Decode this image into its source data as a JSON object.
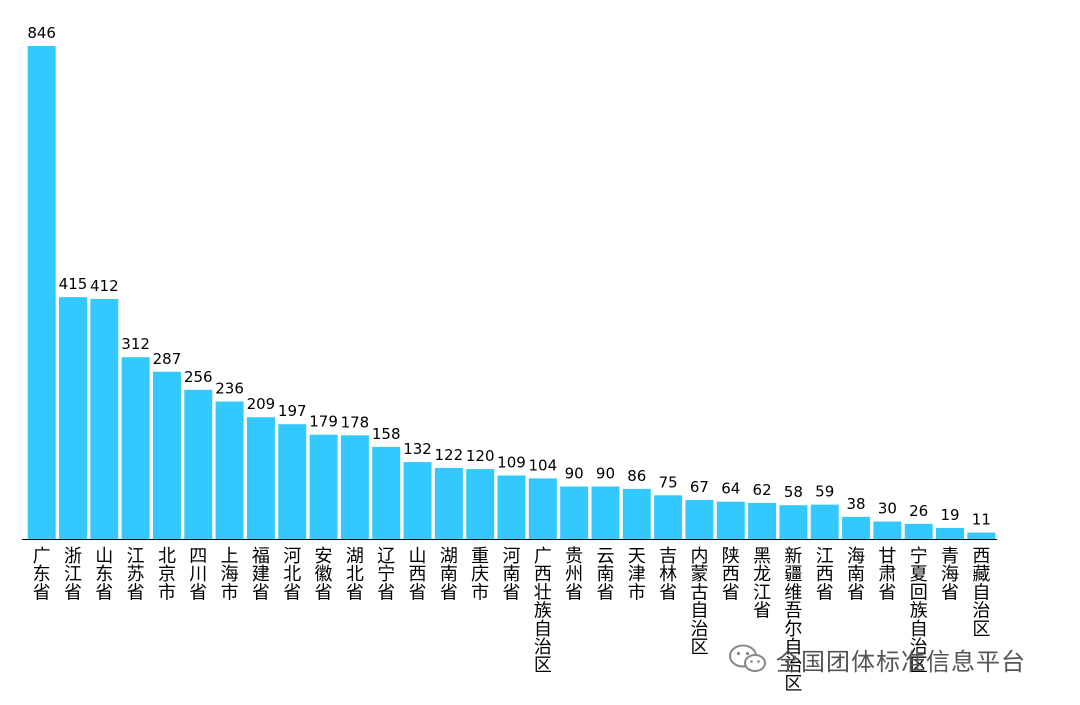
{
  "colors": {
    "bar": "#33C9FF",
    "axis": "#000000",
    "text": "#000000",
    "watermark": "#555555"
  },
  "chart_data": {
    "type": "bar",
    "categories": [
      "广东省",
      "浙江省",
      "山东省",
      "江苏省",
      "北京市",
      "四川省",
      "上海市",
      "福建省",
      "河北省",
      "安徽省",
      "湖北省",
      "辽宁省",
      "山西省",
      "湖南省",
      "重庆市",
      "河南省",
      "广西壮族自治区",
      "贵州省",
      "云南省",
      "天津市",
      "吉林省",
      "内蒙古自治区",
      "陕西省",
      "黑龙江省",
      "新疆维吾尔自治区",
      "江西省",
      "海南省",
      "甘肃省",
      "宁夏回族自治区",
      "青海省",
      "西藏自治区"
    ],
    "values": [
      846,
      415,
      412,
      312,
      287,
      256,
      236,
      209,
      197,
      179,
      178,
      158,
      132,
      122,
      120,
      109,
      104,
      90,
      90,
      86,
      75,
      67,
      64,
      62,
      58,
      59,
      38,
      30,
      26,
      19,
      11
    ],
    "ylim": [
      0,
      846
    ],
    "data_labels": true,
    "grid": false
  },
  "watermark": {
    "icon": "wechat-icon",
    "text": "全国团体标准信息平台"
  }
}
